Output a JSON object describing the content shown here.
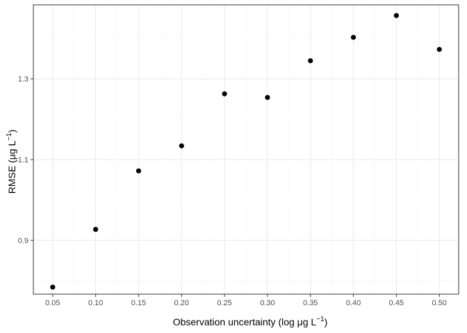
{
  "chart_data": {
    "type": "scatter",
    "xlabel": "Observation uncertainty (log μg L",
    "xlabel_sup": "−1",
    "xlabel_suffix": ")",
    "ylabel": "RMSE (μg L",
    "ylabel_sup": "−1",
    "ylabel_suffix": ")",
    "xlim": [
      0.0275,
      0.5225
    ],
    "ylim": [
      0.7665,
      1.4835
    ],
    "x_ticks": [
      0.05,
      0.1,
      0.15,
      0.2,
      0.25,
      0.3,
      0.35,
      0.4,
      0.45,
      0.5
    ],
    "x_tick_labels": [
      "0.05",
      "0.10",
      "0.15",
      "0.20",
      "0.25",
      "0.30",
      "0.35",
      "0.40",
      "0.45",
      "0.50"
    ],
    "y_ticks": [
      0.9,
      1.1,
      1.3
    ],
    "y_tick_labels": [
      "0.9",
      "1.1",
      "1.3"
    ],
    "grid": true,
    "x": [
      0.05,
      0.1,
      0.15,
      0.2,
      0.25,
      0.3,
      0.35,
      0.4,
      0.45,
      0.5
    ],
    "y": [
      0.784,
      0.927,
      1.072,
      1.134,
      1.263,
      1.254,
      1.345,
      1.403,
      1.457,
      1.373
    ],
    "colors": {
      "point": "#000000",
      "grid_major": "#ebebeb",
      "grid_minor": "#f5f5f5",
      "border": "#333333"
    }
  }
}
